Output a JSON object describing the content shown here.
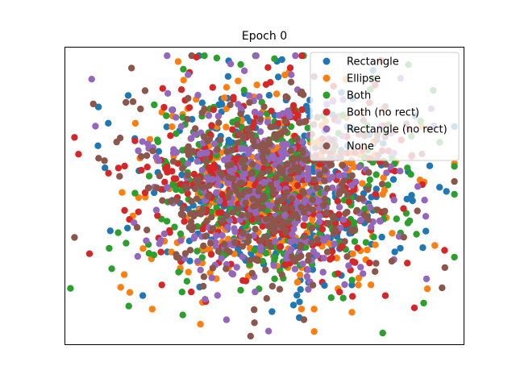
{
  "chart_data": {
    "type": "scatter",
    "title": "Epoch 0",
    "xlabel": "",
    "ylabel": "",
    "xticks": false,
    "yticks": false,
    "grid": false,
    "xlim": [
      -10,
      10
    ],
    "ylim": [
      -10,
      10
    ],
    "legend_position": "top-right",
    "series": [
      {
        "name": "Rectangle",
        "color": "#1f77b4",
        "count": 350
      },
      {
        "name": "Ellipse",
        "color": "#ff7f0e",
        "count": 350
      },
      {
        "name": "Both",
        "color": "#2ca02c",
        "count": 350
      },
      {
        "name": "Both (no rect)",
        "color": "#d62728",
        "count": 350
      },
      {
        "name": "Rectangle (no rect)",
        "color": "#9467bd",
        "count": 350
      },
      {
        "name": "None",
        "color": "#8c564b",
        "count": 350
      }
    ],
    "notable_points": [
      {
        "series": 3,
        "x": -9.3,
        "y": 2.8
      },
      {
        "series": 2,
        "x": -9.7,
        "y": -6.2
      },
      {
        "series": 0,
        "x": 9.1,
        "y": 0.3
      },
      {
        "series": 2,
        "x": 7.2,
        "y": 8.8
      },
      {
        "series": 3,
        "x": 7.5,
        "y": -7.5
      },
      {
        "series": 3,
        "x": -3.4,
        "y": 9.3
      },
      {
        "series": 2,
        "x": 0.5,
        "y": 9.2
      },
      {
        "series": 0,
        "x": 3.0,
        "y": -6.0
      },
      {
        "series": 1,
        "x": -3.2,
        "y": -8.6
      },
      {
        "series": 5,
        "x": -0.5,
        "y": -8.5
      },
      {
        "series": 4,
        "x": -1.9,
        "y": -8.3
      }
    ]
  }
}
